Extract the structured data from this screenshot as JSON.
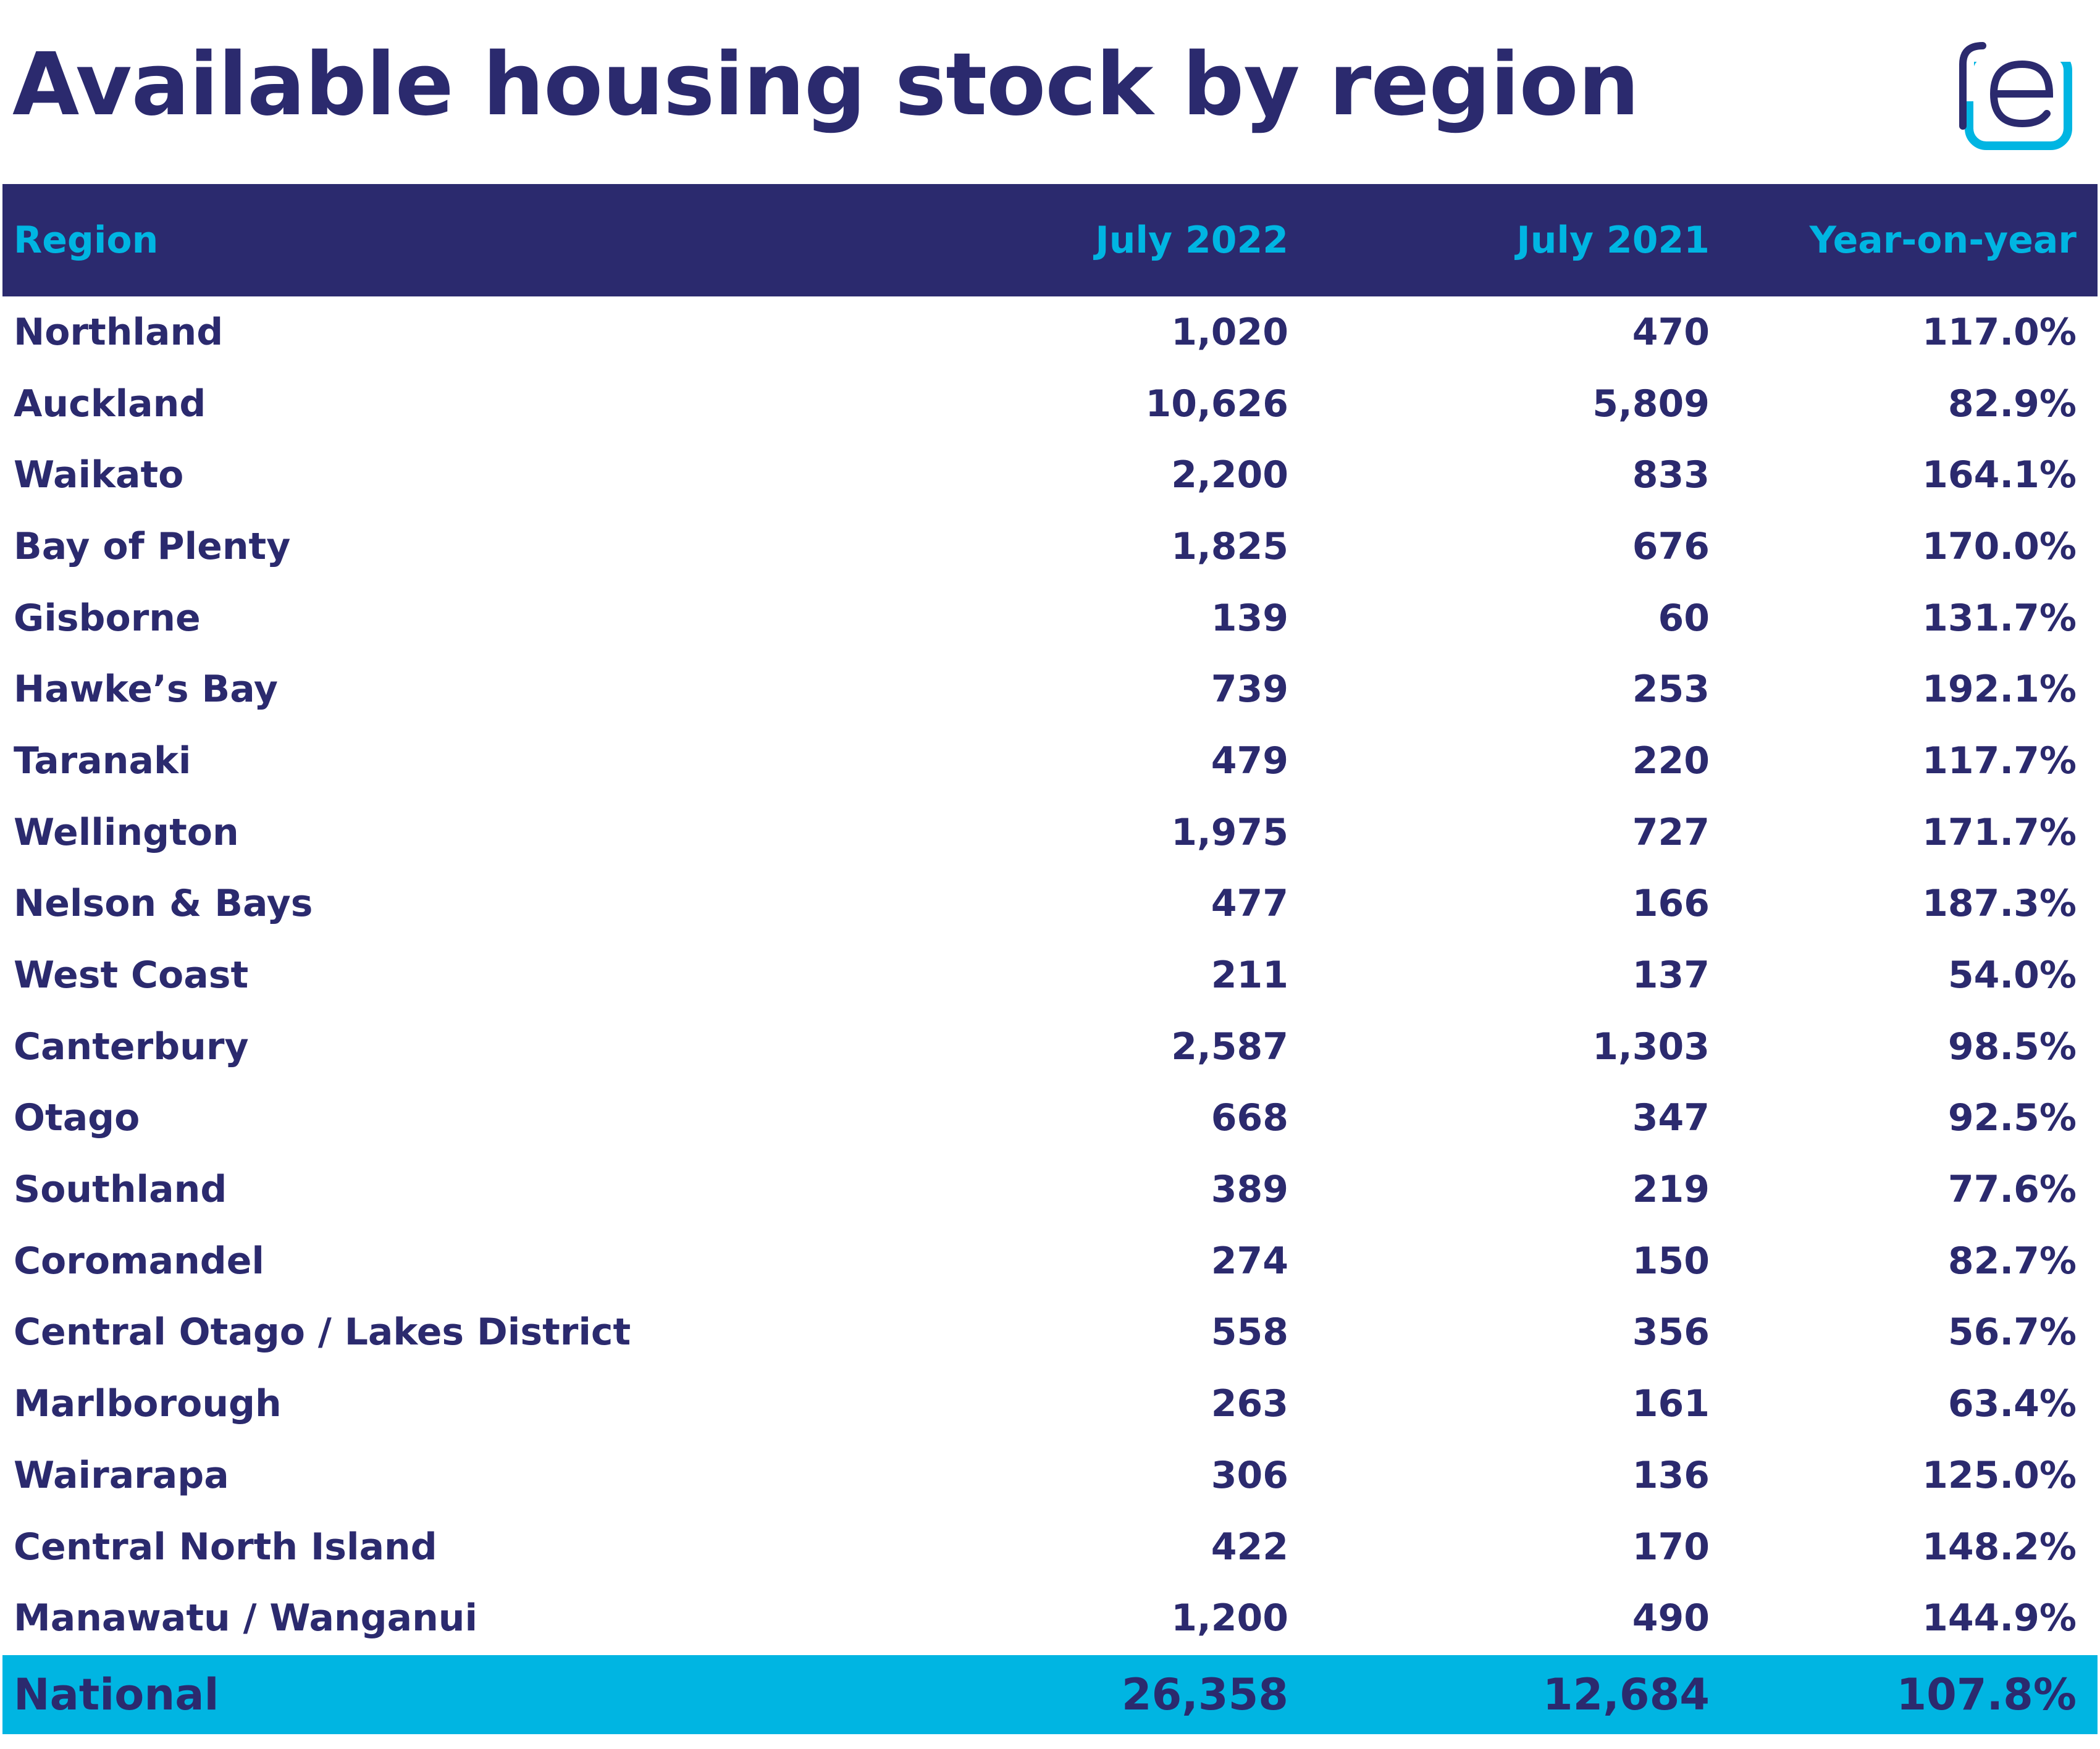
{
  "header": {
    "title": "Available housing stock by region",
    "logo_icon": "re-logo-icon"
  },
  "colors": {
    "navy": "#2b2a6e",
    "cyan": "#00b5e2",
    "background": "#ffffff"
  },
  "table": {
    "columns": {
      "region": "Region",
      "july_2022": "July 2022",
      "july_2021": "July 2021",
      "yoy": "Year-on-year"
    },
    "rows": [
      {
        "region": "Northland",
        "july_2022": "1,020",
        "july_2021": "470",
        "yoy": "117.0%"
      },
      {
        "region": "Auckland",
        "july_2022": "10,626",
        "july_2021": "5,809",
        "yoy": "82.9%"
      },
      {
        "region": "Waikato",
        "july_2022": "2,200",
        "july_2021": "833",
        "yoy": "164.1%"
      },
      {
        "region": "Bay of Plenty",
        "july_2022": "1,825",
        "july_2021": "676",
        "yoy": "170.0%"
      },
      {
        "region": "Gisborne",
        "july_2022": "139",
        "july_2021": "60",
        "yoy": "131.7%"
      },
      {
        "region": "Hawke’s Bay",
        "july_2022": "739",
        "july_2021": "253",
        "yoy": "192.1%"
      },
      {
        "region": "Taranaki",
        "july_2022": "479",
        "july_2021": "220",
        "yoy": "117.7%"
      },
      {
        "region": "Wellington",
        "july_2022": "1,975",
        "july_2021": "727",
        "yoy": "171.7%"
      },
      {
        "region": "Nelson & Bays",
        "july_2022": "477",
        "july_2021": "166",
        "yoy": "187.3%"
      },
      {
        "region": "West Coast",
        "july_2022": "211",
        "july_2021": "137",
        "yoy": "54.0%"
      },
      {
        "region": "Canterbury",
        "july_2022": "2,587",
        "july_2021": "1,303",
        "yoy": "98.5%"
      },
      {
        "region": "Otago",
        "july_2022": "668",
        "july_2021": "347",
        "yoy": "92.5%"
      },
      {
        "region": "Southland",
        "july_2022": "389",
        "july_2021": "219",
        "yoy": "77.6%"
      },
      {
        "region": "Coromandel",
        "july_2022": "274",
        "july_2021": "150",
        "yoy": "82.7%"
      },
      {
        "region": "Central Otago / Lakes District",
        "july_2022": "558",
        "july_2021": "356",
        "yoy": "56.7%"
      },
      {
        "region": "Marlborough",
        "july_2022": "263",
        "july_2021": "161",
        "yoy": "63.4%"
      },
      {
        "region": "Wairarapa",
        "july_2022": "306",
        "july_2021": "136",
        "yoy": "125.0%"
      },
      {
        "region": "Central North Island",
        "july_2022": "422",
        "july_2021": "170",
        "yoy": "148.2%"
      },
      {
        "region": "Manawatu / Wanganui",
        "july_2022": "1,200",
        "july_2021": "490",
        "yoy": "144.9%"
      }
    ],
    "total": {
      "region": "National",
      "july_2022": "26,358",
      "july_2021": "12,684",
      "yoy": "107.8%"
    }
  }
}
